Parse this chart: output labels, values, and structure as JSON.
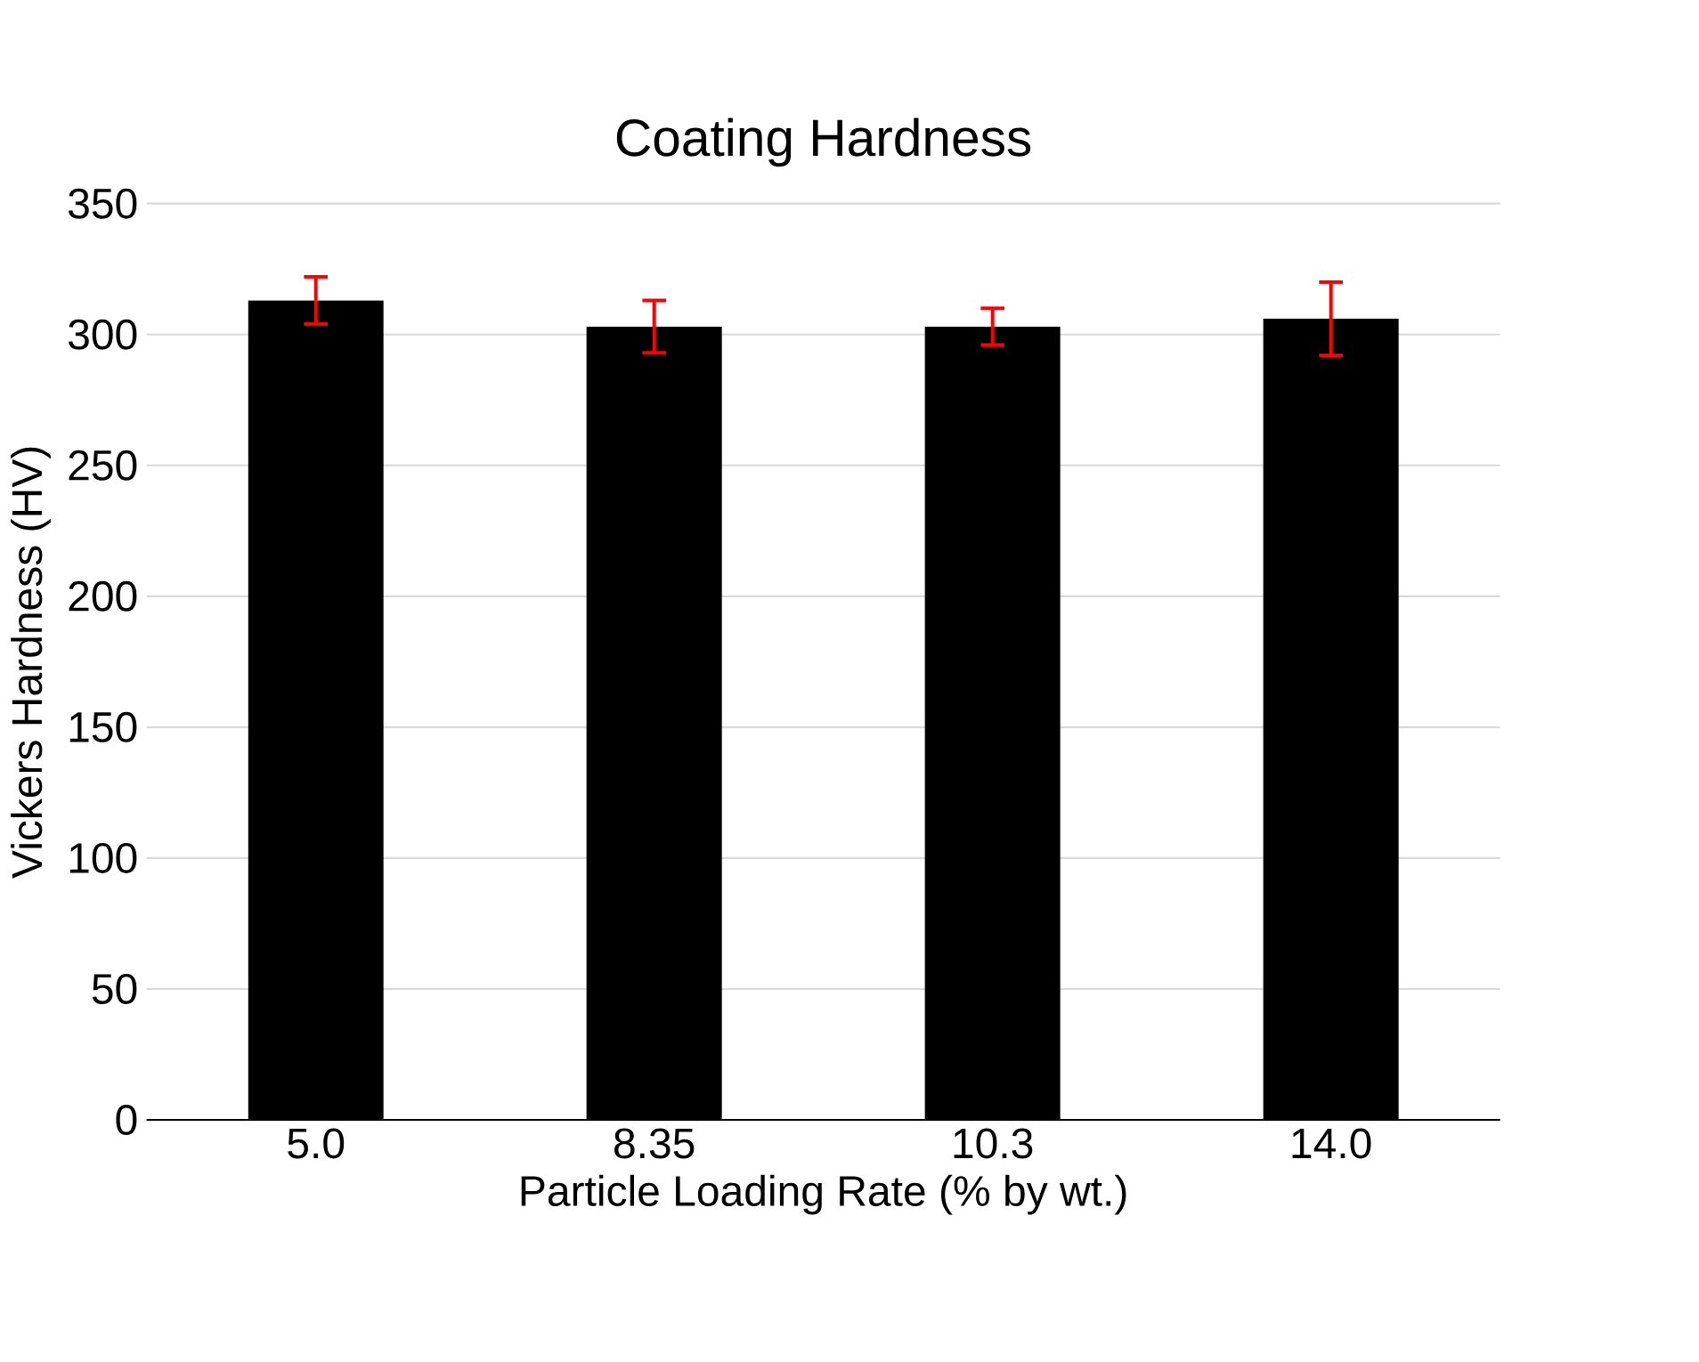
{
  "chart_data": {
    "type": "bar",
    "title": "Coating Hardness",
    "xlabel": "Particle Loading Rate (% by wt.)",
    "ylabel": "Vickers Hardness (HV)",
    "categories": [
      "5.0",
      "8.35",
      "10.3",
      "14.0"
    ],
    "values": [
      313,
      303,
      303,
      306
    ],
    "errors": [
      9,
      10,
      7,
      14
    ],
    "color": "#000000",
    "ylim": [
      0,
      350
    ],
    "yticks": [
      0,
      50,
      100,
      150,
      200,
      250,
      300,
      350
    ],
    "grid": "y"
  }
}
